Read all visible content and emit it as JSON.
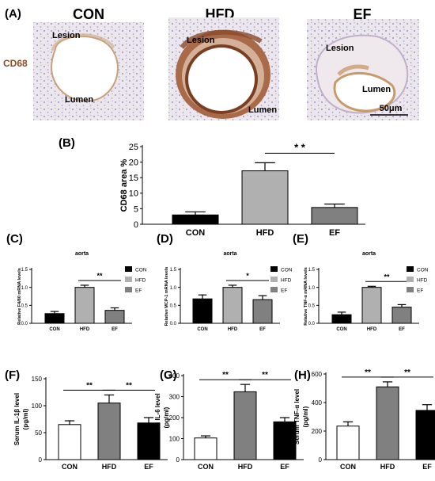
{
  "colors": {
    "black": "#000000",
    "gray_light": "#b0b0b0",
    "gray_mid": "#808080",
    "white": "#ffffff",
    "stain_brown": "#8b4a2a",
    "tissue_blue": "#b8b8d8"
  },
  "panel_a": {
    "label": "(A)",
    "row_label": "CD68",
    "columns": [
      "CON",
      "HFD",
      "EF"
    ],
    "tissue_labels": {
      "con": [
        "Lesion",
        "Lumen"
      ],
      "hfd": [
        "Lesion",
        "Lumen"
      ],
      "ef": [
        "Lesion",
        "Lumen"
      ]
    },
    "scale_bar": "50μm"
  },
  "chart_data": [
    {
      "id": "B",
      "panel_label": "(B)",
      "type": "bar",
      "title": "",
      "categories": [
        "CON",
        "HFD",
        "EF"
      ],
      "values": [
        3.0,
        17.2,
        5.4
      ],
      "errors": [
        1.0,
        2.6,
        1.1
      ],
      "bar_colors": [
        "#000000",
        "#b0b0b0",
        "#808080"
      ],
      "ylabel": "CD68 area %",
      "ylim": [
        0,
        25
      ],
      "yticks": [
        "0",
        "5",
        "10",
        "15",
        "20",
        "25"
      ],
      "significance": [
        {
          "from": 1,
          "to": 2,
          "label": "* *"
        }
      ],
      "legend": []
    },
    {
      "id": "C",
      "panel_label": "(C)",
      "type": "bar",
      "title": "aorta",
      "categories": [
        "CON",
        "HFD",
        "EF"
      ],
      "values": [
        0.27,
        1.0,
        0.36
      ],
      "errors": [
        0.06,
        0.06,
        0.07
      ],
      "bar_colors": [
        "#000000",
        "#b0b0b0",
        "#808080"
      ],
      "ylabel": "Relative F4/80 mRNA levels",
      "ylim": [
        0,
        1.5
      ],
      "yticks": [
        "0.0",
        "0.5",
        "1.0",
        "1.5"
      ],
      "significance": [
        {
          "from": 1,
          "to": 2,
          "label": "**"
        }
      ],
      "legend": [
        "CON",
        "HFD",
        "EF"
      ]
    },
    {
      "id": "D",
      "panel_label": "(D)",
      "type": "bar",
      "title": "aorta",
      "categories": [
        "CON",
        "HFD",
        "EF"
      ],
      "values": [
        0.68,
        1.0,
        0.66
      ],
      "errors": [
        0.11,
        0.06,
        0.11
      ],
      "bar_colors": [
        "#000000",
        "#b0b0b0",
        "#808080"
      ],
      "ylabel": "Relative MCP-1 mRNA levels",
      "ylim": [
        0,
        1.5
      ],
      "yticks": [
        "0.0",
        "0.5",
        "1.0",
        "1.5"
      ],
      "significance": [
        {
          "from": 1,
          "to": 2,
          "label": "*"
        }
      ],
      "legend": [
        "CON",
        "HFD",
        "EF"
      ]
    },
    {
      "id": "E",
      "panel_label": "(E)",
      "type": "bar",
      "title": "aorta",
      "categories": [
        "CON",
        "HFD",
        "EF"
      ],
      "values": [
        0.24,
        1.0,
        0.45
      ],
      "errors": [
        0.07,
        0.03,
        0.07
      ],
      "bar_colors": [
        "#000000",
        "#b0b0b0",
        "#808080"
      ],
      "ylabel": "Relative TNF-α mRNA levels",
      "ylim": [
        0,
        1.5
      ],
      "yticks": [
        "0.0",
        "0.5",
        "1.0",
        "1.5"
      ],
      "significance": [
        {
          "from": 1,
          "to": 2,
          "label": "**"
        }
      ],
      "legend": [
        "CON",
        "HFD",
        "EF"
      ]
    },
    {
      "id": "F",
      "panel_label": "(F)",
      "type": "bar",
      "title": "",
      "categories": [
        "CON",
        "HFD",
        "EF"
      ],
      "values": [
        65,
        105,
        68
      ],
      "errors": [
        7,
        15,
        10
      ],
      "bar_colors": [
        "#ffffff",
        "#808080",
        "#000000"
      ],
      "ylabel": "Serum IL-1β level\n(pg/ml)",
      "ylim": [
        0,
        150
      ],
      "yticks": [
        "0",
        "50",
        "100",
        "150"
      ],
      "significance": [
        {
          "from": 0,
          "to": 1,
          "label": "**"
        },
        {
          "from": 1,
          "to": 2,
          "label": "**"
        }
      ],
      "legend": []
    },
    {
      "id": "G",
      "panel_label": "(G)",
      "type": "bar",
      "title": "",
      "categories": [
        "CON",
        "HFD",
        "EF"
      ],
      "values": [
        103,
        323,
        180
      ],
      "errors": [
        10,
        35,
        20
      ],
      "bar_colors": [
        "#ffffff",
        "#808080",
        "#000000"
      ],
      "ylabel": "Serum IL-6 level\n(pg/ml)",
      "ylim": [
        0,
        400
      ],
      "yticks": [
        "0",
        "100",
        "200",
        "300",
        "400"
      ],
      "significance": [
        {
          "from": 0,
          "to": 1,
          "label": "**"
        },
        {
          "from": 1,
          "to": 2,
          "label": "**"
        }
      ],
      "legend": []
    },
    {
      "id": "H",
      "panel_label": "(H)",
      "type": "bar",
      "title": "",
      "categories": [
        "CON",
        "HFD",
        "EF"
      ],
      "values": [
        235,
        510,
        345
      ],
      "errors": [
        30,
        35,
        40
      ],
      "bar_colors": [
        "#ffffff",
        "#808080",
        "#000000"
      ],
      "ylabel": "Serum TNF-α level\n(pg/ml)",
      "ylim": [
        0,
        600
      ],
      "yticks": [
        "0",
        "200",
        "400",
        "600"
      ],
      "significance": [
        {
          "from": 0,
          "to": 1,
          "label": "**"
        },
        {
          "from": 1,
          "to": 2,
          "label": "**"
        }
      ],
      "legend": []
    }
  ]
}
